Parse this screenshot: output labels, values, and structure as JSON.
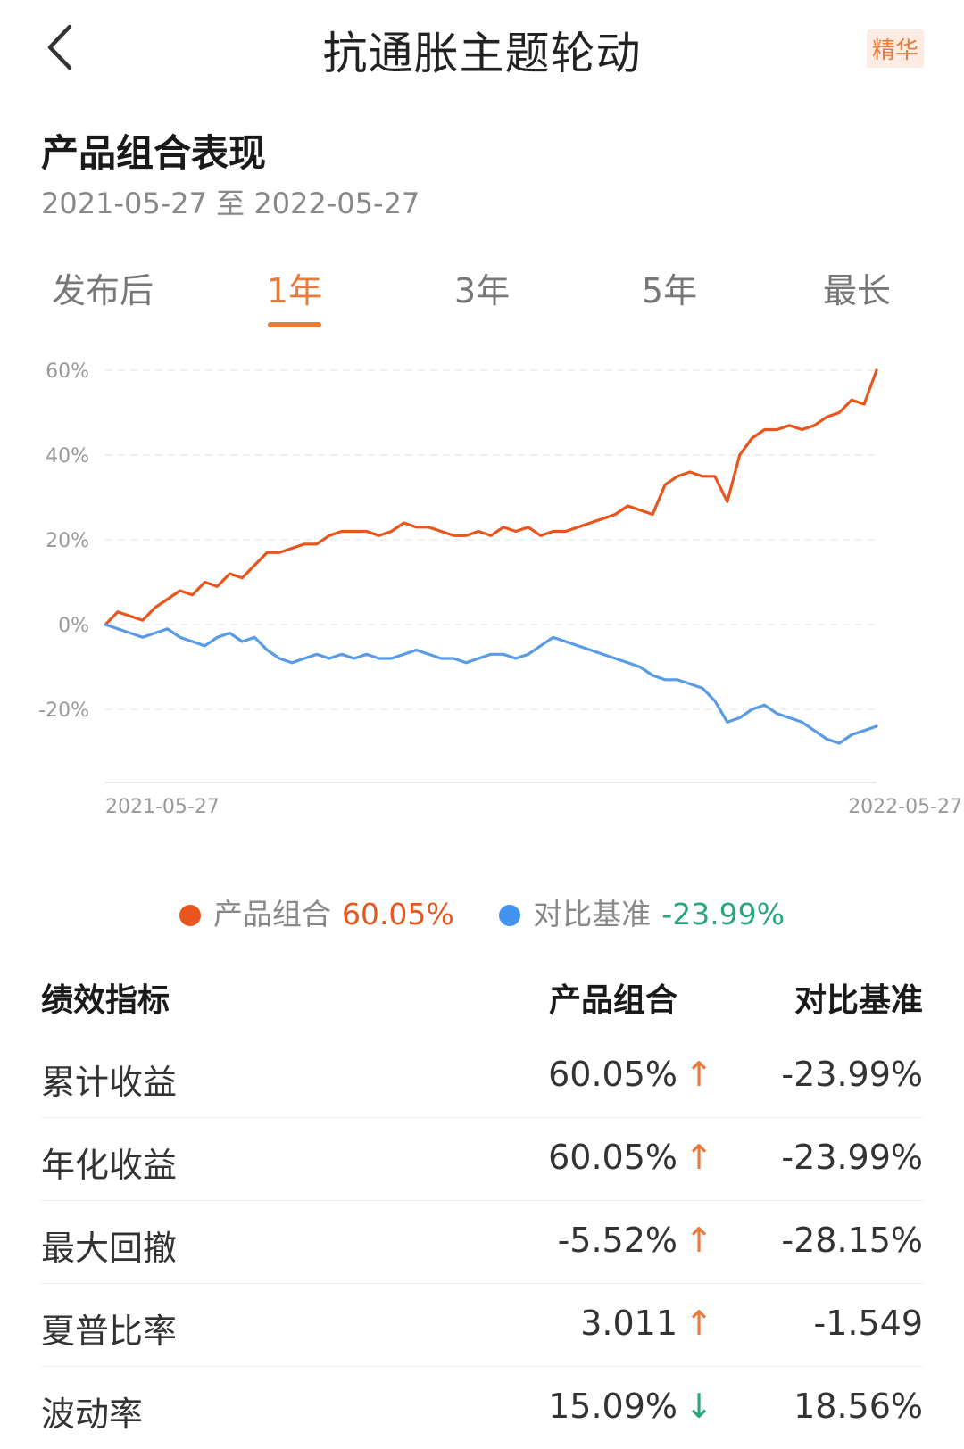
{
  "nav": {
    "title": "抗通胀主题轮动",
    "badge": "精华"
  },
  "section": {
    "title": "产品组合表现",
    "date_range": "2021-05-27 至 2022-05-27"
  },
  "tabs": [
    {
      "label": "发布后",
      "active": false
    },
    {
      "label": "1年",
      "active": true
    },
    {
      "label": "3年",
      "active": false
    },
    {
      "label": "5年",
      "active": false
    },
    {
      "label": "最长",
      "active": false
    }
  ],
  "chart_data": {
    "type": "line",
    "y_tick_labels": [
      "60%",
      "40%",
      "20%",
      "0%",
      "-20%"
    ],
    "y_ticks": [
      60,
      40,
      20,
      0,
      -20
    ],
    "ylim": [
      -37,
      60
    ],
    "grid": true,
    "x_tick_labels": [
      "2021-05-27",
      "2022-05-27"
    ],
    "colors": {
      "portfolio": "#e8561e",
      "benchmark": "#5a9be6"
    },
    "series": [
      {
        "name": "产品组合",
        "values": [
          0,
          3,
          2,
          1,
          4,
          6,
          8,
          7,
          10,
          9,
          12,
          11,
          14,
          17,
          17,
          18,
          19,
          19,
          21,
          22,
          22,
          22,
          21,
          22,
          24,
          23,
          23,
          22,
          21,
          21,
          22,
          21,
          23,
          22,
          23,
          21,
          22,
          22,
          23,
          24,
          25,
          26,
          28,
          27,
          26,
          33,
          35,
          36,
          35,
          35,
          29,
          40,
          44,
          46,
          46,
          47,
          46,
          47,
          49,
          50,
          53,
          52,
          60
        ]
      },
      {
        "name": "对比基准",
        "values": [
          0,
          -1,
          -2,
          -3,
          -2,
          -1,
          -3,
          -4,
          -5,
          -3,
          -2,
          -4,
          -3,
          -6,
          -8,
          -9,
          -8,
          -7,
          -8,
          -7,
          -8,
          -7,
          -8,
          -8,
          -7,
          -6,
          -7,
          -8,
          -8,
          -9,
          -8,
          -7,
          -7,
          -8,
          -7,
          -5,
          -3,
          -4,
          -5,
          -6,
          -7,
          -8,
          -9,
          -10,
          -12,
          -13,
          -13,
          -14,
          -15,
          -18,
          -23,
          -22,
          -20,
          -19,
          -21,
          -22,
          -23,
          -25,
          -27,
          -28,
          -26,
          -25,
          -24
        ]
      }
    ]
  },
  "legend": {
    "portfolio": {
      "label": "产品组合",
      "value": "60.05%",
      "color": "#e8561e",
      "value_color": "#e8561e"
    },
    "benchmark": {
      "label": "对比基准",
      "value": "-23.99%",
      "color": "#4292ef",
      "value_color": "#2aa67a"
    }
  },
  "metrics": {
    "headers": {
      "name": "绩效指标",
      "portfolio": "产品组合",
      "benchmark": "对比基准"
    },
    "rows": [
      {
        "name": "累计收益",
        "portfolio": "60.05%",
        "arrow": "↑",
        "direction": "up",
        "benchmark": "-23.99%"
      },
      {
        "name": "年化收益",
        "portfolio": "60.05%",
        "arrow": "↑",
        "direction": "up",
        "benchmark": "-23.99%"
      },
      {
        "name": "最大回撤",
        "portfolio": "-5.52%",
        "arrow": "↑",
        "direction": "up",
        "benchmark": "-28.15%"
      },
      {
        "name": "夏普比率",
        "portfolio": "3.011",
        "arrow": "↑",
        "direction": "up",
        "benchmark": "-1.549"
      },
      {
        "name": "波动率",
        "portfolio": "15.09%",
        "arrow": "↓",
        "direction": "down",
        "benchmark": "18.56%"
      }
    ]
  }
}
